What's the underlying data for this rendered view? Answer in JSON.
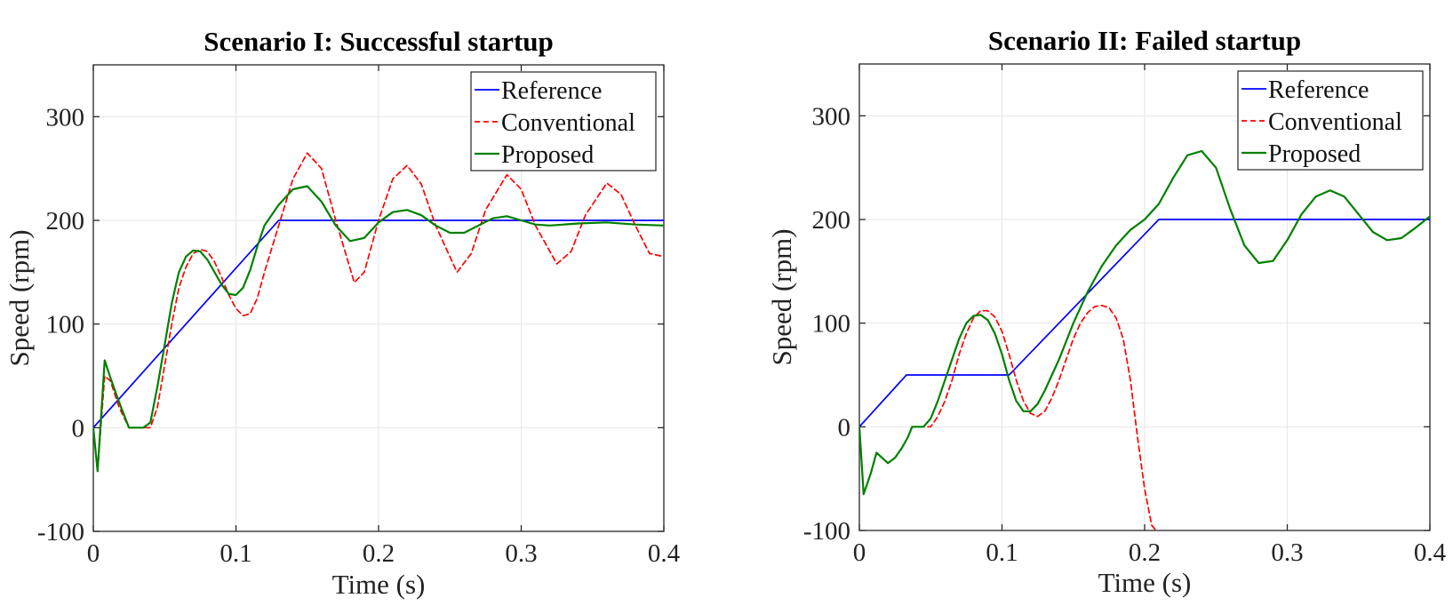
{
  "chart_data": [
    {
      "type": "line",
      "title": "Scenario I: Successful startup",
      "xlabel": "Time (s)",
      "ylabel": "Speed (rpm)",
      "xlim": [
        0,
        0.4
      ],
      "ylim": [
        -100,
        350
      ],
      "xticks": [
        0,
        0.1,
        0.2,
        0.3,
        0.4
      ],
      "xtick_labels": [
        "0",
        "0.1",
        "0.2",
        "0.3",
        "0.4"
      ],
      "yticks": [
        -100,
        0,
        100,
        200,
        300
      ],
      "ytick_labels": [
        "-100",
        "0",
        "100",
        "200",
        "300"
      ],
      "grid": true,
      "legend_position": "top-right",
      "series": [
        {
          "name": "Reference",
          "color": "#0000ff",
          "style": "solid",
          "x": [
            0,
            0.13,
            0.4
          ],
          "y": [
            0,
            200,
            200
          ]
        },
        {
          "name": "Conventional",
          "color": "#ff0000",
          "style": "dashed",
          "x": [
            0,
            0.003,
            0.008,
            0.012,
            0.018,
            0.025,
            0.03,
            0.035,
            0.04,
            0.045,
            0.05,
            0.055,
            0.06,
            0.065,
            0.07,
            0.075,
            0.08,
            0.085,
            0.09,
            0.095,
            0.1,
            0.105,
            0.11,
            0.115,
            0.12,
            0.13,
            0.14,
            0.15,
            0.16,
            0.17,
            0.183,
            0.19,
            0.2,
            0.21,
            0.22,
            0.23,
            0.24,
            0.255,
            0.265,
            0.275,
            0.29,
            0.3,
            0.31,
            0.325,
            0.335,
            0.345,
            0.36,
            0.37,
            0.38,
            0.39,
            0.4
          ],
          "y": [
            0,
            -42,
            50,
            45,
            20,
            0,
            0,
            0,
            0,
            20,
            60,
            100,
            135,
            155,
            168,
            172,
            170,
            160,
            145,
            128,
            115,
            108,
            110,
            125,
            150,
            195,
            240,
            265,
            250,
            200,
            140,
            150,
            200,
            240,
            253,
            235,
            195,
            150,
            168,
            210,
            244,
            230,
            195,
            158,
            170,
            205,
            236,
            225,
            195,
            168,
            165
          ]
        },
        {
          "name": "Proposed",
          "color": "#008000",
          "style": "solid",
          "x": [
            0,
            0.003,
            0.008,
            0.012,
            0.018,
            0.025,
            0.03,
            0.035,
            0.04,
            0.045,
            0.05,
            0.055,
            0.06,
            0.065,
            0.07,
            0.075,
            0.08,
            0.085,
            0.09,
            0.095,
            0.1,
            0.105,
            0.11,
            0.115,
            0.12,
            0.13,
            0.14,
            0.15,
            0.16,
            0.17,
            0.18,
            0.19,
            0.2,
            0.21,
            0.22,
            0.23,
            0.24,
            0.25,
            0.26,
            0.27,
            0.28,
            0.29,
            0.3,
            0.31,
            0.32,
            0.34,
            0.36,
            0.38,
            0.4
          ],
          "y": [
            0,
            -42,
            65,
            48,
            25,
            0,
            0,
            0,
            5,
            40,
            80,
            120,
            150,
            165,
            171,
            170,
            162,
            150,
            138,
            129,
            128,
            135,
            152,
            175,
            195,
            215,
            230,
            233,
            218,
            195,
            180,
            183,
            198,
            208,
            210,
            205,
            195,
            188,
            188,
            195,
            202,
            204,
            200,
            196,
            195,
            197,
            198,
            196,
            195
          ]
        }
      ]
    },
    {
      "type": "line",
      "title": "Scenario II: Failed startup",
      "xlabel": "Time (s)",
      "ylabel": "Speed (rpm)",
      "xlim": [
        0,
        0.4
      ],
      "ylim": [
        -100,
        350
      ],
      "xticks": [
        0,
        0.1,
        0.2,
        0.3,
        0.4
      ],
      "xtick_labels": [
        "0",
        "0.1",
        "0.2",
        "0.3",
        "0.4"
      ],
      "yticks": [
        -100,
        0,
        100,
        200,
        300
      ],
      "ytick_labels": [
        "-100",
        "0",
        "100",
        "200",
        "300"
      ],
      "grid": true,
      "legend_position": "top-right",
      "series": [
        {
          "name": "Reference",
          "color": "#0000ff",
          "style": "solid",
          "x": [
            0,
            0.033,
            0.105,
            0.21,
            0.4
          ],
          "y": [
            0,
            50,
            50,
            200,
            200
          ]
        },
        {
          "name": "Conventional",
          "color": "#ff0000",
          "style": "dashed",
          "x": [
            0,
            0.003,
            0.008,
            0.012,
            0.016,
            0.02,
            0.025,
            0.03,
            0.034,
            0.037,
            0.04,
            0.045,
            0.05,
            0.055,
            0.06,
            0.065,
            0.07,
            0.075,
            0.08,
            0.085,
            0.09,
            0.095,
            0.1,
            0.105,
            0.11,
            0.115,
            0.12,
            0.125,
            0.13,
            0.135,
            0.14,
            0.145,
            0.15,
            0.155,
            0.16,
            0.165,
            0.17,
            0.175,
            0.18,
            0.185,
            0.19,
            0.195,
            0.2,
            0.205,
            0.208
          ],
          "y": [
            0,
            -65,
            -45,
            -25,
            -30,
            -35,
            -30,
            -20,
            -10,
            0,
            0,
            0,
            0,
            10,
            25,
            45,
            70,
            90,
            105,
            112,
            112,
            106,
            92,
            70,
            45,
            25,
            13,
            10,
            15,
            28,
            45,
            65,
            85,
            100,
            110,
            116,
            117,
            115,
            105,
            85,
            45,
            -10,
            -60,
            -95,
            -100
          ]
        },
        {
          "name": "Proposed",
          "color": "#008000",
          "style": "solid",
          "x": [
            0,
            0.003,
            0.008,
            0.012,
            0.016,
            0.02,
            0.025,
            0.03,
            0.034,
            0.037,
            0.04,
            0.045,
            0.05,
            0.055,
            0.06,
            0.065,
            0.07,
            0.075,
            0.08,
            0.085,
            0.09,
            0.095,
            0.1,
            0.105,
            0.11,
            0.115,
            0.12,
            0.125,
            0.13,
            0.14,
            0.15,
            0.16,
            0.17,
            0.18,
            0.19,
            0.2,
            0.21,
            0.22,
            0.23,
            0.24,
            0.25,
            0.26,
            0.27,
            0.28,
            0.29,
            0.3,
            0.31,
            0.32,
            0.33,
            0.34,
            0.35,
            0.36,
            0.37,
            0.38,
            0.39,
            0.4
          ],
          "y": [
            0,
            -65,
            -45,
            -25,
            -30,
            -35,
            -30,
            -20,
            -10,
            0,
            0,
            0,
            8,
            25,
            45,
            65,
            85,
            100,
            107,
            108,
            103,
            90,
            70,
            45,
            25,
            15,
            15,
            22,
            35,
            65,
            100,
            130,
            155,
            175,
            190,
            200,
            215,
            240,
            262,
            266,
            250,
            210,
            175,
            158,
            160,
            180,
            205,
            222,
            228,
            222,
            205,
            188,
            180,
            182,
            192,
            203
          ]
        }
      ]
    }
  ]
}
